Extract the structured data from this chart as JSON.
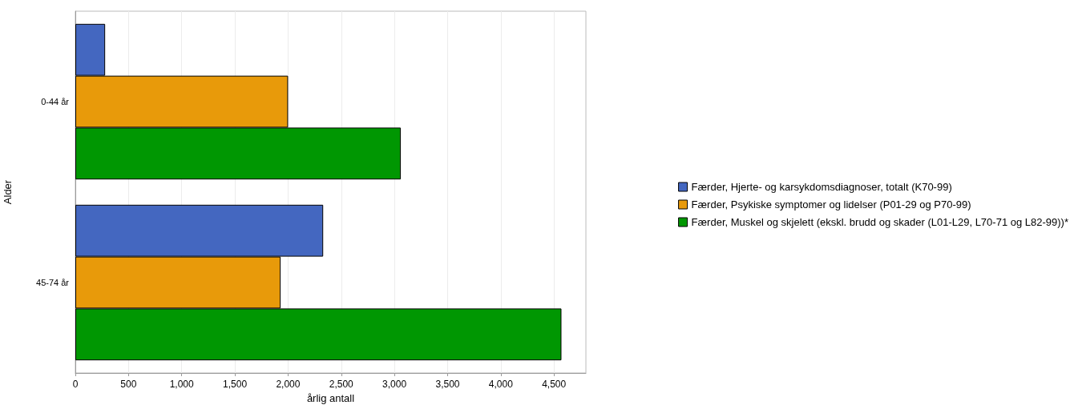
{
  "chart_data": {
    "type": "bar",
    "orientation": "horizontal",
    "xlabel": "årlig antall",
    "ylabel": "Alder",
    "categories": [
      "0-44 år",
      "45-74 år"
    ],
    "series": [
      {
        "name": "Færder, Hjerte- og karsykdomsdiagnoser, totalt (K70-99)",
        "color": "#4467c0",
        "values": [
          280,
          2330
        ]
      },
      {
        "name": "Færder, Psykiske symptomer og lidelser (P01-29 og P70-99)",
        "color": "#e89a0a",
        "values": [
          2000,
          1930
        ]
      },
      {
        "name": "Færder, Muskel og skjelett (ekskl. brudd og skader (L01-L29, L70-71 og L82-99))*",
        "color": "#009702",
        "values": [
          3060,
          4570
        ]
      }
    ],
    "xlim": [
      0,
      4800
    ],
    "xticks": [
      {
        "value": 0,
        "label": "0"
      },
      {
        "value": 500,
        "label": "500"
      },
      {
        "value": 1000,
        "label": "1,000"
      },
      {
        "value": 1500,
        "label": "1,500"
      },
      {
        "value": 2000,
        "label": "2,000"
      },
      {
        "value": 2500,
        "label": "2,500"
      },
      {
        "value": 3000,
        "label": "3,000"
      },
      {
        "value": 3500,
        "label": "3,500"
      },
      {
        "value": 4000,
        "label": "4,000"
      },
      {
        "value": 4500,
        "label": "4,500"
      }
    ],
    "grid": "x",
    "legend": "right"
  }
}
